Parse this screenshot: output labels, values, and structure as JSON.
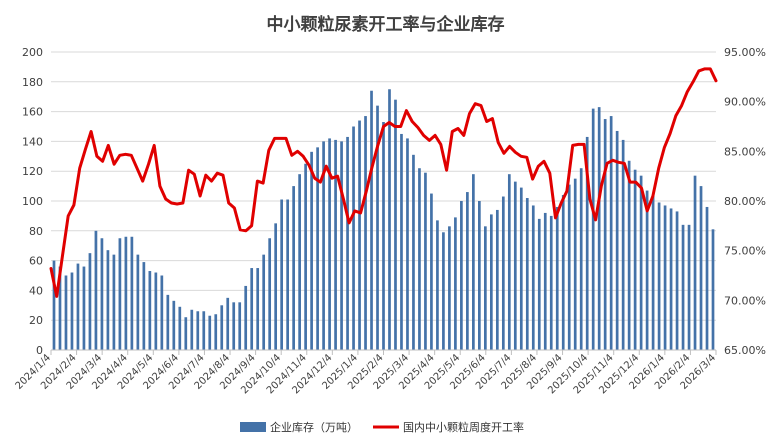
{
  "chart_data": {
    "type": "bar+line",
    "title": "中小颗粒尿素开工率与企业库存",
    "left_axis": {
      "min": 0,
      "max": 200,
      "step": 20,
      "ticks": [
        "0",
        "20",
        "40",
        "60",
        "80",
        "100",
        "120",
        "140",
        "160",
        "180",
        "200"
      ]
    },
    "right_axis": {
      "min": 65,
      "max": 95,
      "step": 5,
      "ticks": [
        "65.00%",
        "70.00%",
        "75.00%",
        "80.00%",
        "85.00%",
        "90.00%",
        "95.00%"
      ]
    },
    "x_labels": [
      "2024/1/4",
      "2024/2/4",
      "2024/3/4",
      "2024/4/4",
      "2024/5/4",
      "2024/6/4",
      "2024/7/4",
      "2024/8/4",
      "2024/9/4",
      "2024/10/4",
      "2024/11/4",
      "2024/12/4",
      "2025/1/4",
      "2025/2/4",
      "2025/3/4",
      "2025/4/4",
      "2025/5/4",
      "2025/6/4",
      "2025/7/4",
      "2025/8/4",
      "2025/9/4",
      "2025/10/4",
      "2025/11/4",
      "2025/12/4",
      "2026/1/4",
      "2026/2/4",
      "2026/3/4"
    ],
    "grid": true,
    "legend_position": "bottom",
    "series": [
      {
        "name": "企业库存（万吨）",
        "axis": "left",
        "type": "bar",
        "color": "#4472a8",
        "values": [
          60,
          56,
          50,
          52,
          58,
          56,
          65,
          80,
          75,
          67,
          64,
          75,
          76,
          76,
          64,
          59,
          53,
          52,
          50,
          37,
          33,
          29,
          22,
          27,
          26,
          26,
          23,
          24,
          30,
          35,
          32,
          32,
          43,
          55,
          55,
          64,
          75,
          85,
          101,
          101,
          110,
          118,
          125,
          133,
          136,
          140,
          142,
          141,
          140,
          143,
          150,
          154,
          157,
          174,
          164,
          153,
          175,
          168,
          145,
          142,
          131,
          122,
          119,
          105,
          87,
          79,
          83,
          89,
          100,
          106,
          118,
          100,
          83,
          91,
          94,
          103,
          118,
          113,
          109,
          102,
          97,
          88,
          92,
          90,
          96,
          104,
          111,
          115,
          122,
          143,
          162,
          163,
          155,
          157,
          147,
          141,
          127,
          121,
          117,
          107,
          104,
          99,
          97,
          95,
          93,
          84,
          84,
          117,
          110,
          96,
          81
        ]
      },
      {
        "name": "国内中小颗粒周度开工率",
        "axis": "right",
        "type": "line",
        "color": "#e00000",
        "values": [
          73.2,
          70.4,
          74.5,
          78.5,
          79.6,
          83.3,
          85.2,
          87.0,
          84.5,
          84.0,
          85.6,
          83.7,
          84.6,
          84.7,
          84.6,
          83.3,
          82.0,
          83.7,
          85.6,
          81.5,
          80.2,
          79.8,
          79.7,
          79.8,
          83.1,
          82.7,
          80.5,
          82.6,
          82.0,
          82.8,
          82.6,
          79.8,
          79.3,
          77.1,
          77.0,
          77.5,
          82.0,
          81.8,
          85.1,
          86.3,
          86.3,
          86.3,
          84.6,
          85.0,
          84.5,
          83.6,
          82.3,
          81.9,
          83.5,
          82.3,
          82.5,
          80.2,
          77.8,
          79.0,
          78.8,
          81.0,
          83.4,
          85.6,
          87.5,
          87.9,
          87.5,
          87.5,
          89.1,
          88.0,
          87.4,
          86.6,
          86.1,
          86.6,
          85.7,
          83.1,
          87.0,
          87.3,
          86.6,
          88.8,
          89.8,
          89.6,
          88.0,
          88.3,
          85.9,
          84.8,
          85.5,
          84.9,
          84.5,
          84.4,
          82.2,
          83.5,
          84.0,
          82.8,
          78.3,
          79.8,
          81.0,
          85.6,
          85.7,
          85.7,
          80.2,
          78.1,
          81.5,
          83.8,
          84.1,
          83.9,
          83.8,
          81.9,
          81.9,
          81.3,
          79.0,
          80.5,
          83.3,
          85.4,
          86.8,
          88.6,
          89.6,
          91.0,
          92.0,
          93.1,
          93.3,
          93.3,
          92.1
        ]
      }
    ]
  }
}
